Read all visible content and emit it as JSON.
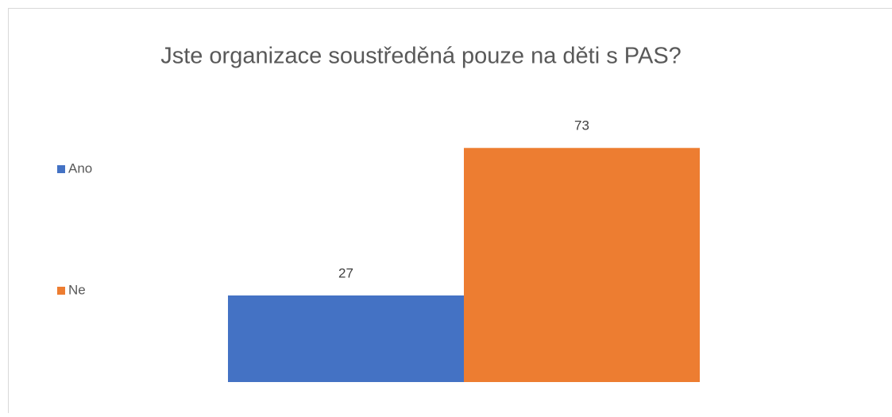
{
  "chart_data": {
    "type": "bar",
    "title": "Jste organizace soustředěná pouze na děti s PAS?",
    "categories": [
      null
    ],
    "series": [
      {
        "name": "Ano",
        "color": "#4472c4",
        "values": [
          27
        ]
      },
      {
        "name": "Ne",
        "color": "#ed7d31",
        "values": [
          73
        ]
      }
    ],
    "ylim": [
      0,
      80
    ],
    "legend": "left"
  }
}
